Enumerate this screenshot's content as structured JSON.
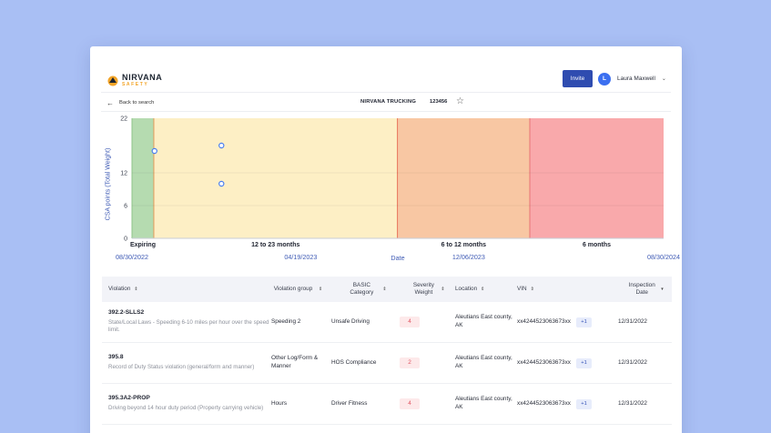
{
  "header": {
    "logo_name": "NIRVANA",
    "logo_sub": "SAFETY",
    "invite_label": "Invite",
    "user_initial": "L",
    "user_name": "Laura Maxwell",
    "caret": "⌄"
  },
  "subheader": {
    "back_arrow": "←",
    "back_label": "Back to search",
    "company": "NIRVANA TRUCKING",
    "dot_number": "123456",
    "star": "☆"
  },
  "chart_data": {
    "type": "scatter",
    "ylabel": "CSA points (Total Weight)",
    "xlabel": "Date",
    "yticks": [
      0,
      6,
      12,
      22
    ],
    "ylim": [
      0,
      22
    ],
    "xlim": [
      "08/30/2022",
      "08/30/2024"
    ],
    "date_ticks": [
      "08/30/2022",
      "04/19/2023",
      "12/06/2023",
      "08/30/2024"
    ],
    "zones": [
      {
        "label": "Expiring",
        "start": "08/30/2022",
        "end": "09/29/2022",
        "color": "#b5dbb0",
        "border": "#8fc48a"
      },
      {
        "label": "12 to 23 months",
        "start": "09/29/2022",
        "end": "08/30/2023",
        "color": "#fdefc5",
        "border": "#e59a5a"
      },
      {
        "label": "6 to 12 months",
        "start": "08/30/2023",
        "end": "02/28/2024",
        "color": "#f8c7a3",
        "border": "#e8735a"
      },
      {
        "label": "6 months",
        "start": "02/28/2024",
        "end": "08/30/2024",
        "color": "#f9a9ab",
        "border": "#e87474"
      }
    ],
    "points": [
      {
        "date": "09/30/2022",
        "y": 16
      },
      {
        "date": "12/31/2022",
        "y": 17
      },
      {
        "date": "12/31/2022",
        "y": 10
      }
    ],
    "colors": {
      "point": "#4a7ff0",
      "axis": "#3f5bb5"
    }
  },
  "table": {
    "headers": {
      "violation": "Violation",
      "group": "Violation group",
      "basic": "BASIC Category",
      "severity": "Severity Weight",
      "location": "Location",
      "vin": "VIN",
      "inspection": "Inspection Date"
    },
    "sort_icon": "⇕",
    "sort_active_icon": "▾",
    "rows": [
      {
        "code": "392.2-SLLS2",
        "desc": "State/Local Laws - Speeding 6-10 miles per hour over the speed limit.",
        "group": "Speeding 2",
        "basic": "Unsafe Driving",
        "weight": "4",
        "location": "Aleutians East county, AK",
        "vin": "xx4244523063673xx",
        "more": "+1",
        "date": "12/31/2022"
      },
      {
        "code": "395.8",
        "desc": "Record of Duty Status violation (general/form and manner)",
        "group": "Other Log/Form & Manner",
        "basic": "HOS Compliance",
        "weight": "2",
        "location": "Aleutians East county, AK",
        "vin": "xx4244523063673xx",
        "more": "+1",
        "date": "12/31/2022"
      },
      {
        "code": "395.3A2-PROP",
        "desc": "Driving beyond 14 hour duty period (Property carrying vehicle)",
        "group": "Hours",
        "basic": "Driver Fitness",
        "weight": "4",
        "location": "Aleutians East county, AK",
        "vin": "xx4244523063673xx",
        "more": "+1",
        "date": "12/31/2022"
      }
    ]
  }
}
